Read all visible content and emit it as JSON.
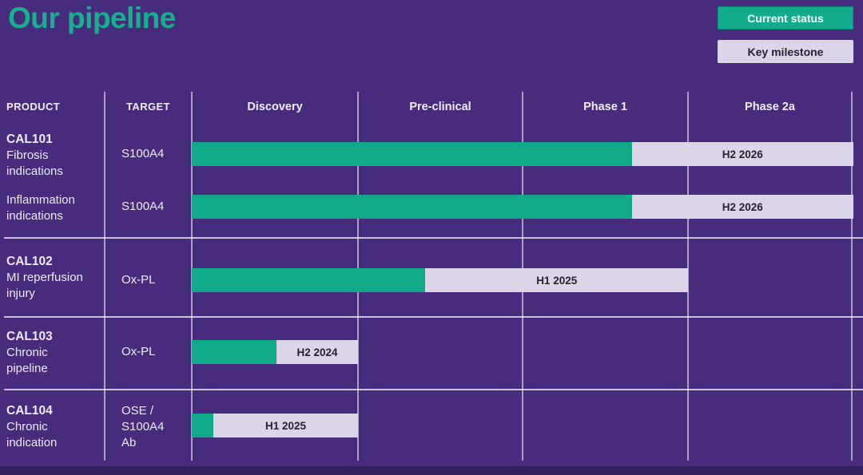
{
  "title": "Our pipeline",
  "colors": {
    "background": "#472C7D",
    "accent_green": "#10A98A",
    "title_green": "#17B08E",
    "milestone_lavender": "#DCD5E8",
    "milestone_text": "#26222E",
    "divider": "rgba(255,255,255,0.55)",
    "bottom_edge": "#32205E"
  },
  "legend": {
    "current_status": "Current status",
    "key_milestone": "Key milestone"
  },
  "header": {
    "product": "PRODUCT",
    "target": "TARGET",
    "phases": [
      "Discovery",
      "Pre-clinical",
      "Phase 1",
      "Phase 2a"
    ]
  },
  "rows": [
    {
      "code": "CAL101",
      "name_lines": [
        "Fibrosis",
        "indications"
      ],
      "target_lines": [
        "S100A4"
      ],
      "milestone": "H2 2026",
      "progress_phases": 2.66,
      "milestone_end_phases": 4.0
    },
    {
      "code": "",
      "name_lines": [
        "Inflammation",
        "indications"
      ],
      "target_lines": [
        "S100A4"
      ],
      "milestone": "H2 2026",
      "progress_phases": 2.66,
      "milestone_end_phases": 4.0
    },
    {
      "code": "CAL102",
      "name_lines": [
        "MI reperfusion",
        "injury"
      ],
      "target_lines": [
        "Ox-PL"
      ],
      "milestone": "H1 2025",
      "progress_phases": 1.41,
      "milestone_end_phases": 3.0
    },
    {
      "code": "CAL103",
      "name_lines": [
        "Chronic",
        "pipeline"
      ],
      "target_lines": [
        "Ox-PL"
      ],
      "milestone": "H2 2024",
      "progress_phases": 0.51,
      "milestone_end_phases": 1.0
    },
    {
      "code": "CAL104",
      "name_lines": [
        "Chronic",
        "indication"
      ],
      "target_lines": [
        "OSE /",
        "S100A4",
        "Ab"
      ],
      "milestone": "H1 2025",
      "progress_phases": 0.13,
      "milestone_end_phases": 1.0
    }
  ],
  "chart_data": {
    "type": "bar",
    "subtype": "horizontal-gantt-pipeline",
    "title": "Our pipeline",
    "phase_columns": [
      "Discovery",
      "Pre-clinical",
      "Phase 1",
      "Phase 2a"
    ],
    "legend": [
      "Current status",
      "Key milestone"
    ],
    "units_note": "phase_units: 1.0 = end of Discovery, 2.0 = end of Pre-clinical, 3.0 = end of Phase 1, 4.0 = end of Phase 2a",
    "series": [
      {
        "product": "CAL101 Fibrosis indications",
        "target": "S100A4",
        "current_status_phase_units": 2.66,
        "key_milestone_label": "H2 2026",
        "key_milestone_end_phase_units": 4.0
      },
      {
        "product": "CAL101 Inflammation indications",
        "target": "S100A4",
        "current_status_phase_units": 2.66,
        "key_milestone_label": "H2 2026",
        "key_milestone_end_phase_units": 4.0
      },
      {
        "product": "CAL102 MI reperfusion injury",
        "target": "Ox-PL",
        "current_status_phase_units": 1.41,
        "key_milestone_label": "H1 2025",
        "key_milestone_end_phase_units": 3.0
      },
      {
        "product": "CAL103 Chronic pipeline",
        "target": "Ox-PL",
        "current_status_phase_units": 0.51,
        "key_milestone_label": "H2 2024",
        "key_milestone_end_phase_units": 1.0
      },
      {
        "product": "CAL104 Chronic indication",
        "target": "OSE / S100A4 Ab",
        "current_status_phase_units": 0.13,
        "key_milestone_label": "H1 2025",
        "key_milestone_end_phase_units": 1.0
      }
    ]
  }
}
